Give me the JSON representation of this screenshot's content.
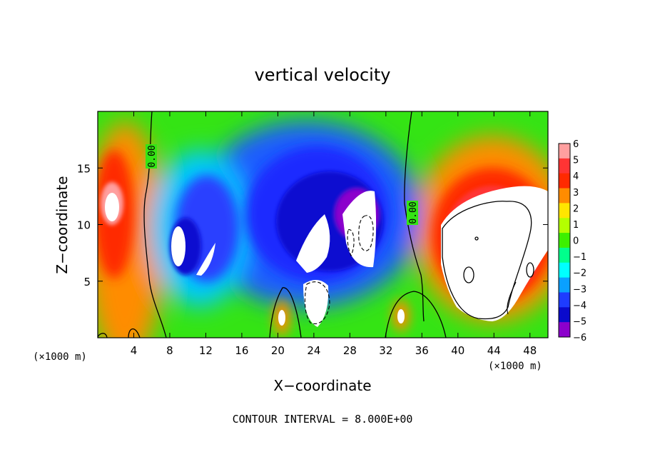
{
  "chart_data": {
    "type": "heatmap",
    "title": "vertical velocity",
    "xlabel": "X−coordinate",
    "ylabel": "Z−coordinate",
    "x_unit_left": "(×1000 m)",
    "x_unit_right": "(×1000 m)",
    "xlim": [
      0,
      50
    ],
    "ylim": [
      0,
      20
    ],
    "x_ticks": [
      4,
      8,
      12,
      16,
      20,
      24,
      28,
      32,
      36,
      40,
      44,
      48
    ],
    "y_ticks": [
      5,
      10,
      15
    ],
    "colorbar": {
      "levels": [
        6,
        5,
        4,
        3,
        2,
        1,
        0,
        -1,
        -2,
        -3,
        -4,
        -5,
        -6
      ],
      "labels": [
        "6",
        "5",
        "4",
        "3",
        "2",
        "1",
        "0",
        "−1",
        "−2",
        "−3",
        "−4",
        "−5",
        "−6"
      ],
      "colors": [
        "#ff9f9f",
        "#ff3434",
        "#ff2a00",
        "#ff8c00",
        "#ffe600",
        "#b4ff00",
        "#3cf000",
        "#00ff8c",
        "#00ffff",
        "#0aa0ff",
        "#1e3cff",
        "#0a0acc",
        "#8c00cc"
      ]
    },
    "contour_labels": [
      "0.00",
      "0.00"
    ],
    "footer": "CONTOUR INTERVAL = 8.000E+00"
  }
}
